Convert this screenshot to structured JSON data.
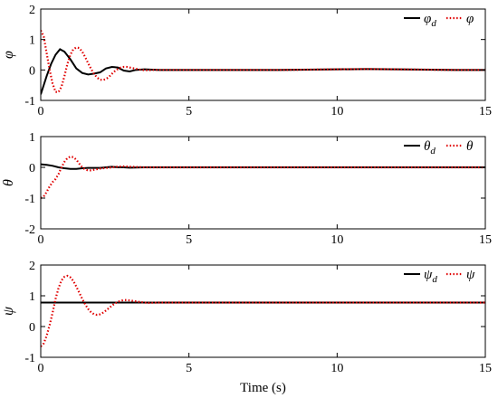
{
  "chart_data": [
    {
      "type": "line",
      "ylabel": "φ",
      "xlim": [
        0,
        15
      ],
      "ylim": [
        -1,
        2
      ],
      "xticks": [
        0,
        5,
        10,
        15
      ],
      "yticks": [
        -1,
        0,
        1,
        2
      ],
      "grid": false,
      "legend": "top-right",
      "series": [
        {
          "name": "φ",
          "sub": "d",
          "style": "solid",
          "color": "#000000",
          "x": [
            0,
            0.1,
            0.2,
            0.35,
            0.5,
            0.65,
            0.8,
            1.0,
            1.2,
            1.4,
            1.6,
            1.8,
            2.0,
            2.2,
            2.4,
            2.6,
            2.8,
            3.0,
            3.2,
            3.5,
            4.0,
            5,
            6,
            7,
            8,
            9,
            10,
            11,
            12,
            13,
            14,
            15
          ],
          "y": [
            -0.8,
            -0.5,
            -0.2,
            0.2,
            0.5,
            0.68,
            0.6,
            0.35,
            0.05,
            -0.1,
            -0.15,
            -0.12,
            -0.08,
            0.05,
            0.1,
            0.08,
            -0.02,
            -0.05,
            0.0,
            0.02,
            0.0,
            0.0,
            0.0,
            0.0,
            0.0,
            0.01,
            0.02,
            0.03,
            0.02,
            0.01,
            0.0,
            0.0
          ]
        },
        {
          "name": "φ",
          "sub": "",
          "style": "dotted",
          "color": "#e00000",
          "x": [
            0,
            0.1,
            0.2,
            0.3,
            0.4,
            0.5,
            0.6,
            0.7,
            0.8,
            0.9,
            1.0,
            1.1,
            1.2,
            1.3,
            1.4,
            1.5,
            1.6,
            1.7,
            1.8,
            1.9,
            2.0,
            2.1,
            2.2,
            2.3,
            2.4,
            2.5,
            2.6,
            2.7,
            2.8,
            2.9,
            3.0,
            3.2,
            3.4,
            3.6,
            3.8,
            4.0,
            5,
            6,
            7,
            8,
            9,
            10,
            11,
            12,
            13,
            14,
            15
          ],
          "y": [
            1.3,
            1.1,
            0.55,
            0.0,
            -0.45,
            -0.72,
            -0.73,
            -0.55,
            -0.2,
            0.2,
            0.5,
            0.68,
            0.74,
            0.72,
            0.6,
            0.42,
            0.22,
            0.03,
            -0.13,
            -0.25,
            -0.32,
            -0.33,
            -0.3,
            -0.23,
            -0.13,
            -0.04,
            0.03,
            0.08,
            0.1,
            0.1,
            0.08,
            0.04,
            0.0,
            -0.01,
            0.0,
            0.0,
            0.0,
            0.0,
            0.0,
            0.0,
            0.01,
            0.02,
            0.03,
            0.02,
            0.01,
            0.0,
            0.0
          ]
        }
      ]
    },
    {
      "type": "line",
      "ylabel": "θ",
      "xlim": [
        0,
        15
      ],
      "ylim": [
        -2,
        1
      ],
      "xticks": [
        0,
        5,
        10,
        15
      ],
      "yticks": [
        -2,
        -1,
        0,
        1
      ],
      "grid": false,
      "legend": "top-right",
      "series": [
        {
          "name": "θ",
          "sub": "d",
          "style": "solid",
          "color": "#000000",
          "x": [
            0,
            0.2,
            0.4,
            0.6,
            0.8,
            1.0,
            1.2,
            1.4,
            1.6,
            1.8,
            2.0,
            2.2,
            2.4,
            2.6,
            2.8,
            3.0,
            3.5,
            4.0,
            5,
            6,
            7,
            8,
            9,
            10,
            11,
            12,
            13,
            14,
            15
          ],
          "y": [
            0.1,
            0.08,
            0.05,
            0.0,
            -0.03,
            -0.05,
            -0.05,
            -0.03,
            -0.02,
            -0.02,
            -0.02,
            0.0,
            0.02,
            0.0,
            0.0,
            -0.01,
            0.0,
            0.0,
            0.0,
            0.0,
            0.0,
            0.0,
            0.0,
            0.0,
            0.0,
            0.0,
            0.0,
            0.0,
            0.0
          ]
        },
        {
          "name": "θ",
          "sub": "",
          "style": "dotted",
          "color": "#e00000",
          "x": [
            0,
            0.1,
            0.2,
            0.3,
            0.4,
            0.5,
            0.6,
            0.7,
            0.8,
            0.9,
            1.0,
            1.1,
            1.2,
            1.3,
            1.4,
            1.5,
            1.6,
            1.7,
            1.8,
            1.9,
            2.0,
            2.2,
            2.4,
            2.6,
            2.8,
            3.0,
            3.5,
            4.0,
            5,
            6,
            7,
            8,
            9,
            10,
            11,
            12,
            13,
            14,
            15
          ],
          "y": [
            -1.0,
            -0.95,
            -0.8,
            -0.62,
            -0.48,
            -0.38,
            -0.22,
            0.0,
            0.18,
            0.3,
            0.35,
            0.33,
            0.25,
            0.12,
            0.0,
            -0.07,
            -0.1,
            -0.1,
            -0.08,
            -0.06,
            -0.04,
            -0.02,
            0.0,
            0.02,
            0.03,
            0.02,
            0.0,
            0.0,
            0.0,
            0.0,
            0.0,
            0.0,
            0.0,
            0.0,
            0.0,
            0.0,
            0.0,
            0.0,
            0.0
          ]
        }
      ]
    },
    {
      "type": "line",
      "ylabel": "ψ",
      "xlabel": "Time (s)",
      "xlim": [
        0,
        15
      ],
      "ylim": [
        -1,
        2
      ],
      "xticks": [
        0,
        5,
        10,
        15
      ],
      "yticks": [
        -1,
        0,
        1,
        2
      ],
      "grid": false,
      "legend": "top-right",
      "series": [
        {
          "name": "ψ",
          "sub": "d",
          "style": "solid",
          "color": "#000000",
          "x": [
            0,
            15
          ],
          "y": [
            0.78,
            0.78
          ]
        },
        {
          "name": "ψ",
          "sub": "",
          "style": "dotted",
          "color": "#e00000",
          "x": [
            0,
            0.1,
            0.2,
            0.3,
            0.4,
            0.5,
            0.6,
            0.7,
            0.8,
            0.9,
            1.0,
            1.1,
            1.2,
            1.3,
            1.4,
            1.5,
            1.6,
            1.7,
            1.8,
            1.9,
            2.0,
            2.1,
            2.2,
            2.3,
            2.4,
            2.5,
            2.6,
            2.7,
            2.8,
            2.9,
            3.0,
            3.2,
            3.4,
            3.6,
            4.0,
            5,
            6,
            7,
            8,
            9,
            10,
            11,
            12,
            13,
            14,
            15
          ],
          "y": [
            -0.65,
            -0.55,
            -0.3,
            0.05,
            0.45,
            0.9,
            1.25,
            1.5,
            1.62,
            1.65,
            1.6,
            1.48,
            1.3,
            1.1,
            0.9,
            0.72,
            0.57,
            0.46,
            0.4,
            0.38,
            0.4,
            0.45,
            0.52,
            0.6,
            0.68,
            0.75,
            0.8,
            0.84,
            0.86,
            0.86,
            0.85,
            0.82,
            0.79,
            0.77,
            0.78,
            0.78,
            0.78,
            0.78,
            0.78,
            0.78,
            0.78,
            0.78,
            0.78,
            0.78,
            0.78,
            0.78
          ]
        }
      ]
    }
  ]
}
